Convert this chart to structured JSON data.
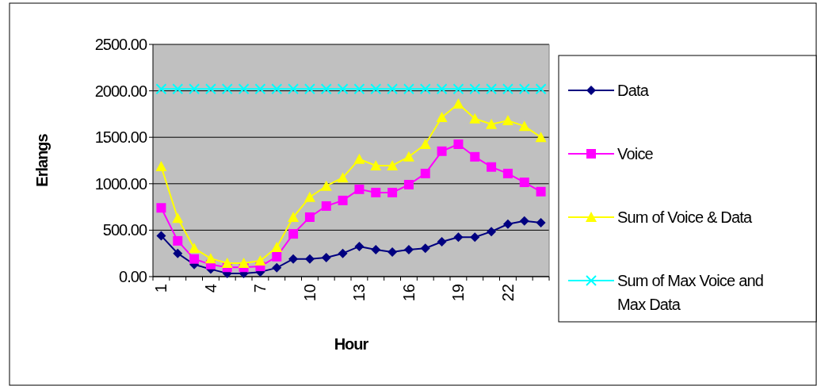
{
  "chart_data": {
    "type": "line",
    "xlabel": "Hour",
    "ylabel": "Erlangs",
    "categories": [
      "1",
      null,
      null,
      "4",
      null,
      null,
      "7",
      null,
      null,
      "10",
      null,
      null,
      "13",
      null,
      null,
      "16",
      null,
      null,
      "19",
      null,
      null,
      "22",
      null,
      null
    ],
    "series": [
      {
        "name": "Data",
        "color": "#000080",
        "marker": "diamond",
        "values": [
          440,
          250,
          130,
          80,
          35,
          35,
          50,
          95,
          190,
          190,
          205,
          250,
          325,
          290,
          265,
          290,
          305,
          375,
          425,
          425,
          485,
          565,
          600,
          580
        ]
      },
      {
        "name": "Voice",
        "color": "#ff00ff",
        "marker": "square",
        "values": [
          740,
          385,
          190,
          130,
          100,
          100,
          110,
          215,
          460,
          640,
          760,
          820,
          940,
          905,
          905,
          990,
          1110,
          1350,
          1425,
          1290,
          1180,
          1110,
          1015,
          915
        ]
      },
      {
        "name": "Sum of Voice & Data",
        "color": "#ffff00",
        "marker": "triangle",
        "values": [
          1185,
          630,
          305,
          195,
          145,
          145,
          170,
          315,
          640,
          855,
          975,
          1065,
          1265,
          1195,
          1195,
          1290,
          1425,
          1715,
          1860,
          1700,
          1640,
          1680,
          1620,
          1500
        ]
      },
      {
        "name": "Sum of Max Voice and Max Data",
        "color": "#00ffff",
        "marker": "cross",
        "values": [
          2020,
          2020,
          2020,
          2020,
          2020,
          2020,
          2020,
          2020,
          2020,
          2020,
          2020,
          2020,
          2020,
          2020,
          2020,
          2020,
          2020,
          2020,
          2020,
          2020,
          2020,
          2020,
          2020,
          2020
        ]
      }
    ],
    "ylim": [
      0,
      2500
    ],
    "yticks": [
      {
        "value": 0,
        "label": "0.00"
      },
      {
        "value": 500,
        "label": "500.00"
      },
      {
        "value": 1000,
        "label": "1000.00"
      },
      {
        "value": 1500,
        "label": "1500.00"
      },
      {
        "value": 2000,
        "label": "2000.00"
      },
      {
        "value": 2500,
        "label": "2500.00"
      }
    ],
    "grid": "y",
    "legend": "right"
  }
}
